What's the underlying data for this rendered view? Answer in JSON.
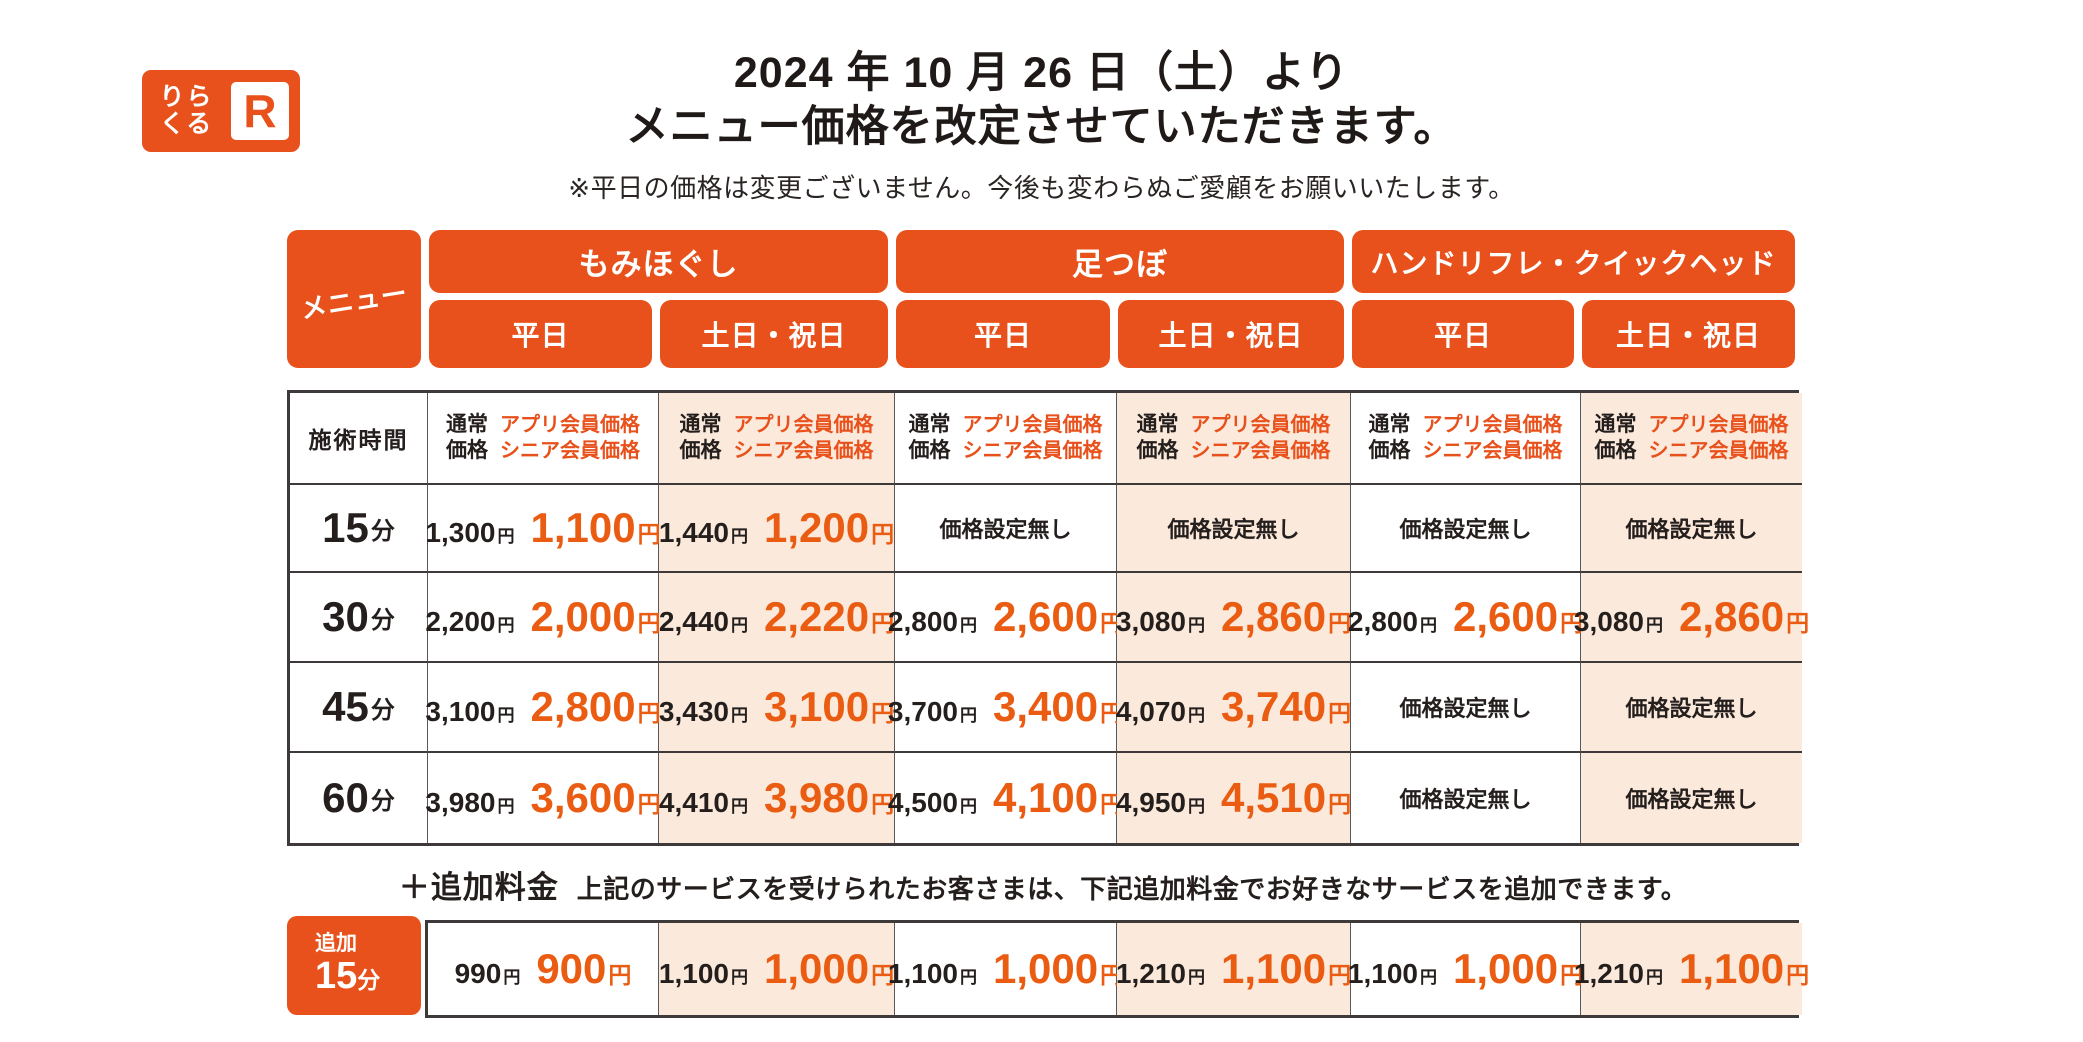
{
  "brand": {
    "logo_line1": "りら",
    "logo_line2": "くる",
    "logo_mark": "R"
  },
  "header": {
    "title_line1": "2024 年 10 月 26 日（土）より",
    "title_line2": "メニュー価格を改定させていただきます。",
    "note": "※平日の価格は変更ございません。今後も変わらぬご愛顧をお願いいたします。"
  },
  "table": {
    "menu_label": "メニュー",
    "time_header": "施術時間",
    "minutes_unit": "分",
    "yen": "円",
    "no_price_label": "価格設定無し",
    "categories": [
      {
        "label": "もみほぐし"
      },
      {
        "label": "足つぼ"
      },
      {
        "label": "ハンドリフレ・クイックヘッド"
      }
    ],
    "day_headers": [
      "平日",
      "土日・祝日",
      "平日",
      "土日・祝日",
      "平日",
      "土日・祝日"
    ],
    "price_header": {
      "normal_line1": "通常",
      "normal_line2": "価格",
      "member_line1": "アプリ会員価格",
      "member_line2": "シニア会員価格"
    },
    "rows": [
      {
        "time": "15",
        "cells": [
          {
            "normal": "1,300",
            "member": "1,100"
          },
          {
            "normal": "1,440",
            "member": "1,200"
          },
          {
            "none": true
          },
          {
            "none": true
          },
          {
            "none": true
          },
          {
            "none": true
          }
        ]
      },
      {
        "time": "30",
        "cells": [
          {
            "normal": "2,200",
            "member": "2,000"
          },
          {
            "normal": "2,440",
            "member": "2,220"
          },
          {
            "normal": "2,800",
            "member": "2,600"
          },
          {
            "normal": "3,080",
            "member": "2,860"
          },
          {
            "normal": "2,800",
            "member": "2,600"
          },
          {
            "normal": "3,080",
            "member": "2,860"
          }
        ]
      },
      {
        "time": "45",
        "cells": [
          {
            "normal": "3,100",
            "member": "2,800"
          },
          {
            "normal": "3,430",
            "member": "3,100"
          },
          {
            "normal": "3,700",
            "member": "3,400"
          },
          {
            "normal": "4,070",
            "member": "3,740"
          },
          {
            "none": true
          },
          {
            "none": true
          }
        ]
      },
      {
        "time": "60",
        "cells": [
          {
            "normal": "3,980",
            "member": "3,600"
          },
          {
            "normal": "4,410",
            "member": "3,980"
          },
          {
            "normal": "4,500",
            "member": "4,100"
          },
          {
            "normal": "4,950",
            "member": "4,510"
          },
          {
            "none": true
          },
          {
            "none": true
          }
        ]
      }
    ]
  },
  "addon": {
    "heading_bold": "＋追加料金",
    "heading_rest": "上記のサービスを受けられたお客さまは、下記追加料金でお好きなサービスを追加できます。",
    "time_small": "追加",
    "time": "15",
    "unit": "分",
    "cells": [
      {
        "normal": "990",
        "member": "900"
      },
      {
        "normal": "1,100",
        "member": "1,000"
      },
      {
        "normal": "1,100",
        "member": "1,000"
      },
      {
        "normal": "1,210",
        "member": "1,100"
      },
      {
        "normal": "1,100",
        "member": "1,000"
      },
      {
        "normal": "1,210",
        "member": "1,100"
      }
    ]
  },
  "colors": {
    "brand_orange": "#e8511b",
    "member_price_orange": "#ea5c12",
    "weekend_column_peach": "#fbe9dc",
    "table_border": "#3e3a39",
    "text_black": "#241f1d"
  }
}
